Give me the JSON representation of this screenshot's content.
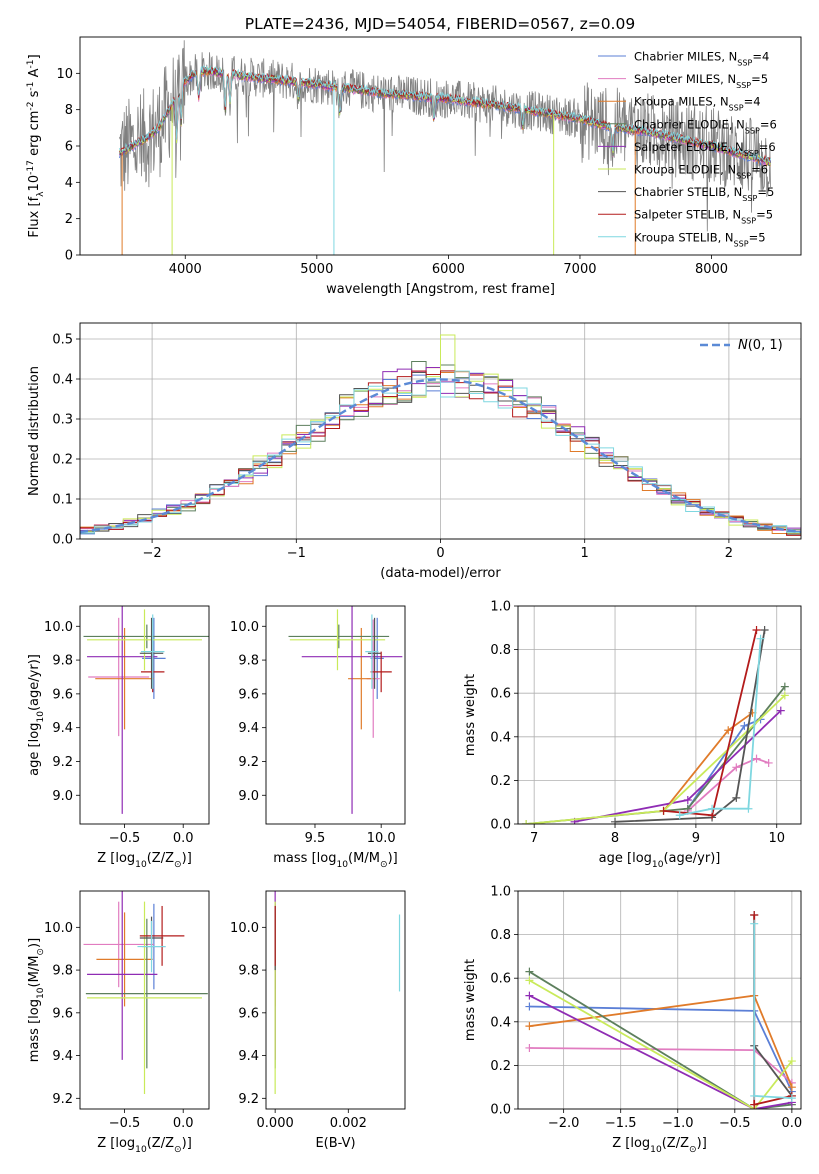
{
  "figure_title": "PLATE=2436, MJD=54054, FIBERID=0567, z=0.09",
  "colors": {
    "chabrier_miles": "#5b7fd6",
    "salpeter_miles": "#e17cc0",
    "kroupa_miles": "#e07b2a",
    "chabrier_elodie": "#5d7f5d",
    "salpeter_elodie": "#8f2cb4",
    "kroupa_elodie": "#c9ea5a",
    "chabrier_stelib": "#555555",
    "salpeter_stelib": "#b31b1b",
    "kroupa_stelib": "#7fd7e0",
    "gaussian": "#5b8ad6",
    "data_spectrum": "#808080"
  },
  "chart_data": [
    {
      "id": "spectrum",
      "type": "line",
      "title": "",
      "xlabel": "wavelength [Angstrom, rest frame]",
      "ylabel": "Flux [f$_\\lambda$10$^{-17}$ erg cm$^{-2}$ s$^{-1}$ A$^{-1}$]",
      "xlim": [
        3200,
        8680
      ],
      "ylim": [
        0,
        12
      ],
      "xticks": [
        4000,
        5000,
        6000,
        7000,
        8000
      ],
      "yticks": [
        0,
        2,
        4,
        6,
        8,
        10
      ],
      "grid": false,
      "legend_position": "top-right",
      "legend": [
        "Chabrier MILES, N$_{SSP}$=4",
        "Salpeter MILES, N$_{SSP}$=5",
        "Kroupa MILES, N$_{SSP}$=4",
        "Chabrier ELODIE, N$_{SSP}$=6",
        "Salpeter ELODIE, N$_{SSP}$=6",
        "Kroupa ELODIE, N$_{SSP}$=6",
        "Chabrier STELIB, N$_{SSP}$=5",
        "Salpeter STELIB, N$_{SSP}$=5",
        "Kroupa STELIB, N$_{SSP}$=5"
      ],
      "continuum": {
        "x": [
          3500,
          3600,
          3700,
          3800,
          3900,
          4000,
          4100,
          4200,
          4500,
          5000,
          5500,
          6000,
          6500,
          7000,
          7200,
          7500,
          8000,
          8450
        ],
        "y": [
          5.6,
          6.0,
          6.4,
          7.0,
          8.3,
          9.6,
          10.1,
          10.1,
          9.8,
          9.4,
          8.9,
          8.6,
          8.1,
          7.5,
          7.1,
          6.8,
          6.0,
          5.1
        ]
      }
    },
    {
      "id": "residual-hist",
      "type": "line",
      "xlabel": "(data-model)/error",
      "ylabel": "Normed distribution",
      "xlim": [
        -2.5,
        2.5
      ],
      "ylim": [
        0,
        0.54
      ],
      "xticks": [
        -2,
        -1,
        0,
        1,
        2
      ],
      "yticks": [
        0.0,
        0.1,
        0.2,
        0.3,
        0.4,
        0.5
      ],
      "grid": true,
      "legend_position": "top-right",
      "legend": [
        "$\\mathcal{N}(0, 1)$"
      ],
      "gaussian": {
        "mean": 0,
        "sigma": 1
      }
    },
    {
      "id": "age-vs-z",
      "type": "scatter",
      "xlabel": "Z [log$_{10}$(Z/Z$_\\odot$)]",
      "ylabel": "age  [log$_{10}$(age/yr)]",
      "xlim": [
        -0.88,
        0.22
      ],
      "ylim": [
        8.83,
        10.12
      ],
      "xticks": [
        -0.5,
        0.0
      ],
      "yticks": [
        9.0,
        9.2,
        9.4,
        9.6,
        9.8,
        10.0
      ],
      "grid": false,
      "points": [
        {
          "model": "chabrier_miles",
          "x": -0.25,
          "y": 9.81,
          "xerr": 0.1,
          "yerr": 0.24
        },
        {
          "model": "salpeter_miles",
          "x": -0.55,
          "y": 9.7,
          "xerr": 0.26,
          "yerr": 0.35
        },
        {
          "model": "kroupa_miles",
          "x": -0.5,
          "y": 9.69,
          "xerr": 0.25,
          "yerr": 0.3
        },
        {
          "model": "chabrier_elodie",
          "x": -0.31,
          "y": 9.94,
          "xerr": 0.54,
          "yerr": 0.07
        },
        {
          "model": "salpeter_elodie",
          "x": -0.52,
          "y": 9.82,
          "xerr": 0.3,
          "yerr": 0.93
        },
        {
          "model": "kroupa_elodie",
          "x": -0.33,
          "y": 9.92,
          "xerr": 0.49,
          "yerr": 0.18
        },
        {
          "model": "chabrier_stelib",
          "x": -0.27,
          "y": 9.84,
          "xerr": 0.1,
          "yerr": 0.21
        },
        {
          "model": "salpeter_stelib",
          "x": -0.26,
          "y": 9.73,
          "xerr": 0.1,
          "yerr": 0.12
        },
        {
          "model": "kroupa_stelib",
          "x": -0.26,
          "y": 9.85,
          "xerr": 0.1,
          "yerr": 0.22
        }
      ]
    },
    {
      "id": "age-vs-mass",
      "type": "scatter",
      "xlabel": "mass [log$_{10}$(M/M$_\\odot$)]",
      "ylabel": "",
      "xlim": [
        9.13,
        10.18
      ],
      "ylim": [
        8.83,
        10.12
      ],
      "xticks": [
        9.5,
        10.0
      ],
      "yticks": [
        9.0,
        9.2,
        9.4,
        9.6,
        9.8,
        10.0
      ],
      "grid": false,
      "points": [
        {
          "model": "chabrier_miles",
          "x": 9.97,
          "y": 9.81,
          "xerr": 0.05,
          "yerr": 0.24
        },
        {
          "model": "salpeter_miles",
          "x": 9.94,
          "y": 9.69,
          "xerr": 0.05,
          "yerr": 0.35
        },
        {
          "model": "kroupa_miles",
          "x": 9.85,
          "y": 9.69,
          "xerr": 0.1,
          "yerr": 0.3
        },
        {
          "model": "chabrier_elodie",
          "x": 9.68,
          "y": 9.94,
          "xerr": 0.38,
          "yerr": 0.07
        },
        {
          "model": "salpeter_elodie",
          "x": 9.78,
          "y": 9.82,
          "xerr": 0.38,
          "yerr": 0.93
        },
        {
          "model": "kroupa_elodie",
          "x": 9.67,
          "y": 9.92,
          "xerr": 0.36,
          "yerr": 0.18
        },
        {
          "model": "chabrier_stelib",
          "x": 9.95,
          "y": 9.84,
          "xerr": 0.05,
          "yerr": 0.21
        },
        {
          "model": "salpeter_stelib",
          "x": 10.0,
          "y": 9.73,
          "xerr": 0.08,
          "yerr": 0.12
        },
        {
          "model": "kroupa_stelib",
          "x": 9.93,
          "y": 9.85,
          "xerr": 0.05,
          "yerr": 0.22
        }
      ]
    },
    {
      "id": "weight-vs-age",
      "type": "line",
      "xlabel": "age  [log$_{10}$(age/yr)]",
      "ylabel": "mass weight",
      "xlim": [
        6.8,
        10.3
      ],
      "ylim": [
        0,
        1
      ],
      "xticks": [
        7,
        8,
        9,
        10
      ],
      "yticks": [
        0.0,
        0.2,
        0.4,
        0.6,
        0.8,
        1.0
      ],
      "grid": true,
      "series": [
        {
          "model": "chabrier_miles",
          "x": [
            8.9,
            9.6,
            9.8
          ],
          "y": [
            0.07,
            0.45,
            0.48
          ]
        },
        {
          "model": "salpeter_miles",
          "x": [
            8.9,
            9.5,
            9.75,
            9.9
          ],
          "y": [
            0.06,
            0.26,
            0.3,
            0.28
          ]
        },
        {
          "model": "kroupa_miles",
          "x": [
            8.6,
            9.4,
            9.7
          ],
          "y": [
            0.06,
            0.43,
            0.51
          ]
        },
        {
          "model": "chabrier_elodie",
          "x": [
            6.9,
            8.9,
            10.1
          ],
          "y": [
            0.0,
            0.07,
            0.63
          ]
        },
        {
          "model": "salpeter_elodie",
          "x": [
            7.5,
            8.9,
            10.05
          ],
          "y": [
            0.01,
            0.11,
            0.52
          ]
        },
        {
          "model": "kroupa_elodie",
          "x": [
            6.9,
            8.6,
            10.1
          ],
          "y": [
            0.0,
            0.06,
            0.59
          ]
        },
        {
          "model": "chabrier_stelib",
          "x": [
            8.0,
            9.2,
            9.5,
            9.85
          ],
          "y": [
            0.01,
            0.03,
            0.12,
            0.89
          ]
        },
        {
          "model": "salpeter_stelib",
          "x": [
            8.6,
            9.2,
            9.75
          ],
          "y": [
            0.06,
            0.04,
            0.89
          ]
        },
        {
          "model": "kroupa_stelib",
          "x": [
            8.8,
            9.2,
            9.65,
            9.8
          ],
          "y": [
            0.04,
            0.07,
            0.07,
            0.85
          ]
        }
      ]
    },
    {
      "id": "mass-vs-z",
      "type": "scatter",
      "xlabel": "Z [log$_{10}$(Z/Z$_\\odot$)]",
      "ylabel": "mass [log$_{10}$(M/M$_\\odot$)]",
      "xlim": [
        -0.88,
        0.22
      ],
      "ylim": [
        9.15,
        10.17
      ],
      "xticks": [
        -0.5,
        0.0
      ],
      "yticks": [
        9.2,
        9.4,
        9.6,
        9.8,
        10.0
      ],
      "grid": false,
      "points": [
        {
          "model": "chabrier_miles",
          "x": -0.25,
          "y": 9.91,
          "xerr": 0.1,
          "yerr": 0.2
        },
        {
          "model": "salpeter_miles",
          "x": -0.55,
          "y": 9.92,
          "xerr": 0.3,
          "yerr": 0.2
        },
        {
          "model": "kroupa_miles",
          "x": -0.5,
          "y": 9.85,
          "xerr": 0.24,
          "yerr": 0.22
        },
        {
          "model": "chabrier_elodie",
          "x": -0.31,
          "y": 9.69,
          "xerr": 0.52,
          "yerr": 0.35
        },
        {
          "model": "salpeter_elodie",
          "x": -0.52,
          "y": 9.78,
          "xerr": 0.3,
          "yerr": 0.4
        },
        {
          "model": "kroupa_elodie",
          "x": -0.33,
          "y": 9.67,
          "xerr": 0.49,
          "yerr": 0.45
        },
        {
          "model": "chabrier_stelib",
          "x": -0.27,
          "y": 9.95,
          "xerr": 0.1,
          "yerr": 0.1
        },
        {
          "model": "salpeter_stelib",
          "x": -0.18,
          "y": 9.96,
          "xerr": 0.19,
          "yerr": 0.14
        },
        {
          "model": "kroupa_stelib",
          "x": -0.27,
          "y": 9.91,
          "xerr": 0.12,
          "yerr": 0.12
        }
      ]
    },
    {
      "id": "mass-vs-ebv",
      "type": "scatter",
      "xlabel": "E(B-V)",
      "ylabel": "",
      "xlim": [
        -0.00025,
        0.00355
      ],
      "ylim": [
        9.15,
        10.17
      ],
      "xticks": [
        0.0,
        0.002
      ],
      "yticks": [
        9.2,
        9.4,
        9.6,
        9.8,
        10.0
      ],
      "grid": false,
      "points": [
        {
          "model": "chabrier_miles",
          "x": 0.0,
          "y": 9.91,
          "yerr": 0.2
        },
        {
          "model": "salpeter_miles",
          "x": 0.0,
          "y": 9.92,
          "yerr": 0.2
        },
        {
          "model": "kroupa_miles",
          "x": 0.0,
          "y": 9.85,
          "yerr": 0.22
        },
        {
          "model": "chabrier_elodie",
          "x": 0.0,
          "y": 9.69,
          "yerr": 0.35
        },
        {
          "model": "salpeter_elodie",
          "x": 0.0,
          "y": 9.78,
          "yerr": 0.4
        },
        {
          "model": "kroupa_elodie",
          "x": 0.0,
          "y": 9.67,
          "yerr": 0.45
        },
        {
          "model": "chabrier_stelib",
          "x": 0.0,
          "y": 9.95,
          "yerr": 0.15
        },
        {
          "model": "salpeter_stelib",
          "x": 0.0,
          "y": 9.96,
          "yerr": 0.14
        },
        {
          "model": "kroupa_stelib",
          "x": 0.0034,
          "y": 9.88,
          "yerr": 0.18
        }
      ]
    },
    {
      "id": "weight-vs-z",
      "type": "line",
      "xlabel": "Z [log$_{10}$(Z/Z$_\\odot$)]",
      "ylabel": "mass weight",
      "xlim": [
        -2.4,
        0.08
      ],
      "ylim": [
        0,
        1
      ],
      "xticks": [
        -2.0,
        -1.5,
        -1.0,
        -0.5,
        0.0
      ],
      "yticks": [
        0.0,
        0.2,
        0.4,
        0.6,
        0.8,
        1.0
      ],
      "grid": true,
      "series": [
        {
          "model": "chabrier_miles",
          "x": [
            -2.3,
            -0.33,
            0.0
          ],
          "y": [
            0.47,
            0.45,
            0.08
          ]
        },
        {
          "model": "salpeter_miles",
          "x": [
            -2.3,
            -0.33,
            0.0
          ],
          "y": [
            0.28,
            0.27,
            0.12
          ]
        },
        {
          "model": "kroupa_miles",
          "x": [
            -2.3,
            -0.33,
            0.0
          ],
          "y": [
            0.38,
            0.52,
            0.1
          ]
        },
        {
          "model": "chabrier_elodie",
          "x": [
            -2.3,
            -0.33,
            0.0
          ],
          "y": [
            0.63,
            0.0,
            0.02
          ]
        },
        {
          "model": "salpeter_elodie",
          "x": [
            -2.3,
            -0.33,
            0.0
          ],
          "y": [
            0.52,
            0.0,
            0.03
          ]
        },
        {
          "model": "kroupa_elodie",
          "x": [
            -2.3,
            -0.33,
            0.0
          ],
          "y": [
            0.59,
            0.0,
            0.22
          ]
        },
        {
          "model": "chabrier_stelib",
          "x": [
            -0.33,
            -0.33,
            0.0
          ],
          "y": [
            0.89,
            0.29,
            0.06
          ]
        },
        {
          "model": "salpeter_stelib",
          "x": [
            -0.33,
            -0.33,
            0.0
          ],
          "y": [
            0.89,
            0.02,
            0.06
          ]
        },
        {
          "model": "kroupa_stelib",
          "x": [
            -0.33,
            -0.33,
            0.0
          ],
          "y": [
            0.85,
            0.06,
            0.05
          ]
        }
      ]
    }
  ]
}
